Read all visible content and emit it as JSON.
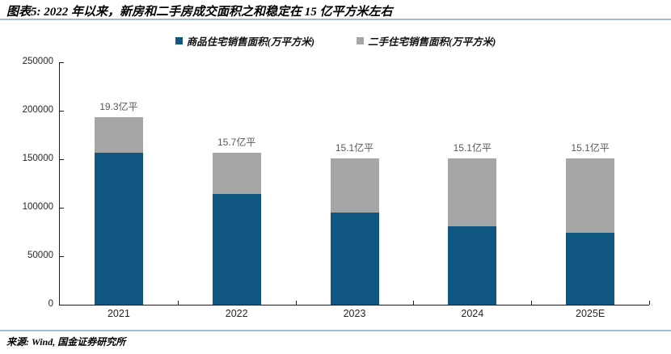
{
  "header": {
    "title": "图表5: 2022 年以来，新房和二手房成交面积之和稳定在 15 亿平方米左右"
  },
  "footer": {
    "source": "来源: Wind, 国金证券研究所"
  },
  "colors": {
    "new_home_bar": "#0f5680",
    "second_hand_bar": "#a6a6a6",
    "divider_line": "#9fbfd0",
    "axis_line": "#1a1a1a",
    "data_label_text": "#595959"
  },
  "chart_data": {
    "type": "bar",
    "stacked": true,
    "title": "图表5: 2022 年以来，新房和二手房成交面积之和稳定在 15 亿平方米左右",
    "categories": [
      "2021",
      "2022",
      "2023",
      "2024",
      "2025E"
    ],
    "series": [
      {
        "name": "商品住宅销售面积(万平方米)",
        "color": "#0f5680",
        "values": [
          156500,
          114600,
          94800,
          81000,
          74500
        ]
      },
      {
        "name": "二手住宅销售面积(万平方米)",
        "color": "#a6a6a6",
        "values": [
          36500,
          42400,
          56200,
          70000,
          76500
        ]
      }
    ],
    "total_labels": [
      "19.3亿平",
      "15.7亿平",
      "15.1亿平",
      "15.1亿平",
      "15.1亿平"
    ],
    "xlabel": "",
    "ylabel": "",
    "ylim": [
      0,
      250000
    ],
    "ytick_step": 50000,
    "yticks": [
      "0",
      "50000",
      "100000",
      "150000",
      "200000",
      "250000"
    ],
    "grid": false,
    "legend_position": "top-center"
  }
}
